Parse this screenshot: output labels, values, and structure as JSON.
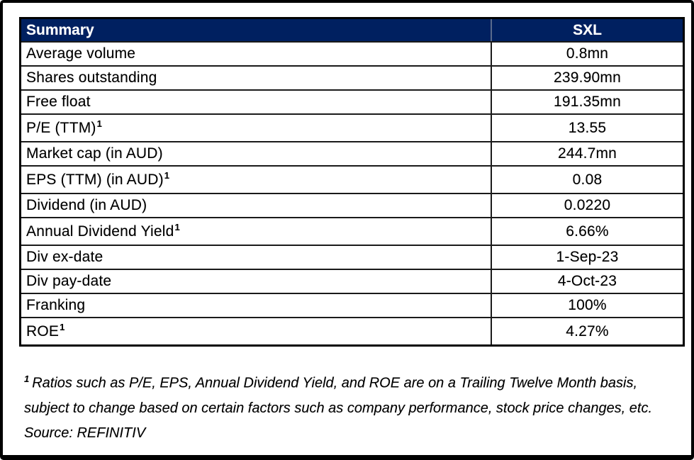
{
  "table": {
    "header": {
      "col1": "Summary",
      "col2": "SXL",
      "bg": "#002060"
    },
    "rows": [
      {
        "label": "Average volume",
        "sup": "",
        "value": "0.8mn"
      },
      {
        "label": "Shares outstanding",
        "sup": "",
        "value": "239.90mn"
      },
      {
        "label": "Free float",
        "sup": "",
        "value": "191.35mn"
      },
      {
        "label": "P/E (TTM)",
        "sup": "1",
        "value": "13.55"
      },
      {
        "label": "Market cap (in AUD)",
        "sup": "",
        "value": "244.7mn"
      },
      {
        "label": "EPS (TTM) (in AUD)",
        "sup": "1",
        "value": "0.08"
      },
      {
        "label": "Dividend (in AUD)",
        "sup": "",
        "value": "0.0220"
      },
      {
        "label": "Annual Dividend Yield",
        "sup": "1",
        "value": "6.66%"
      },
      {
        "label": "Div ex-date",
        "sup": "",
        "value": "1-Sep-23"
      },
      {
        "label": "Div pay-date",
        "sup": "",
        "value": "4-Oct-23"
      },
      {
        "label": "Franking",
        "sup": "",
        "value": "100%"
      },
      {
        "label": "ROE",
        "sup": "1",
        "value": "4.27%"
      }
    ]
  },
  "footnote": {
    "marker": "1",
    "line1": "Ratios such as P/E, EPS, Annual Dividend Yield, and ROE are on a Trailing Twelve Month basis,",
    "line2": "subject to change based on certain factors such as company performance, stock price changes, etc.",
    "source": "Source: REFINITIV"
  },
  "colors": {
    "header_bg": "#002060",
    "header_text": "#ffffff",
    "grid": "#1a1a1a"
  }
}
